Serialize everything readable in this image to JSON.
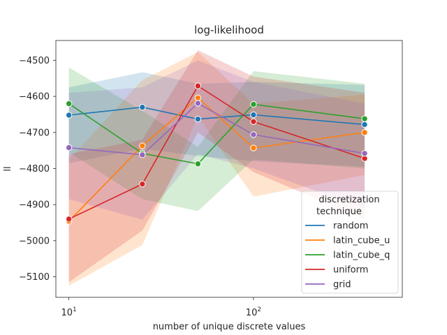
{
  "chart_data": {
    "type": "line",
    "title": "log-likelihood",
    "xlabel": "number of unique discrete values",
    "ylabel": "ll",
    "x_scale": "log",
    "xlim": [
      8.5,
      640
    ],
    "ylim": [
      -5157,
      -4445
    ],
    "x_ticks": [
      {
        "value": 10,
        "base": "10",
        "exp": "1"
      },
      {
        "value": 100,
        "base": "10",
        "exp": "2"
      }
    ],
    "y_ticks": [
      {
        "value": -5100,
        "label": "−5100"
      },
      {
        "value": -5000,
        "label": "−5000"
      },
      {
        "value": -4900,
        "label": "−4900"
      },
      {
        "value": -4800,
        "label": "−4800"
      },
      {
        "value": -4700,
        "label": "−4700"
      },
      {
        "value": -4600,
        "label": "−4600"
      },
      {
        "value": -4500,
        "label": "−4500"
      }
    ],
    "x": [
      10,
      25,
      50,
      100,
      400
    ],
    "grid": false,
    "legend": {
      "title_line1": "discretization",
      "title_line2": "technique",
      "placement": "lower-right"
    },
    "series": [
      {
        "name": "random",
        "color": "#1f77b4",
        "values": [
          -4652,
          -4630,
          -4663,
          -4651,
          -4678
        ],
        "lower": [
          -4785,
          -4745,
          -4765,
          -4780,
          -4795
        ],
        "upper": [
          -4575,
          -4533,
          -4565,
          -4560,
          -4568
        ]
      },
      {
        "name": "latin_cube_u",
        "color": "#ff7f0e",
        "values": [
          -4946,
          -4737,
          -4604,
          -4743,
          -4700
        ],
        "lower": [
          -5125,
          -5012,
          -4655,
          -4878,
          -4818
        ],
        "upper": [
          -4775,
          -4555,
          -4477,
          -4620,
          -4595
        ]
      },
      {
        "name": "latin_cube_q",
        "color": "#2ca02c",
        "values": [
          -4620,
          -4758,
          -4787,
          -4622,
          -4662
        ],
        "lower": [
          -4755,
          -4885,
          -4918,
          -4775,
          -4800
        ],
        "upper": [
          -4520,
          -4640,
          -4740,
          -4530,
          -4565
        ]
      },
      {
        "name": "uniform",
        "color": "#d62728",
        "values": [
          -4940,
          -4843,
          -4571,
          -4670,
          -4772
        ],
        "lower": [
          -5115,
          -4972,
          -4700,
          -4810,
          -4940
        ],
        "upper": [
          -4760,
          -4720,
          -4472,
          -4545,
          -4590
        ]
      },
      {
        "name": "grid",
        "color": "#9467bd",
        "values": [
          -4742,
          -4762,
          -4619,
          -4706,
          -4758
        ],
        "lower": [
          -4885,
          -4942,
          -4760,
          -4800,
          -4910
        ],
        "upper": [
          -4590,
          -4575,
          -4500,
          -4560,
          -4620
        ]
      }
    ]
  }
}
